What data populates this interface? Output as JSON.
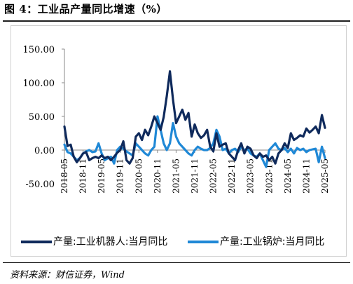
{
  "figure": {
    "title": "图 4：工业品产量同比增速（%）",
    "source": "资料来源：财信证券，Wind"
  },
  "chart_data": {
    "type": "line",
    "yticks": [
      "150.00",
      "100.00",
      "50.00",
      "0.00",
      "-50.00"
    ],
    "ylim": [
      -50,
      150
    ],
    "xlabels": [
      "2018-05",
      "2018-11",
      "2019-05",
      "2019-11",
      "2020-05",
      "2020-11",
      "2021-05",
      "2021-11",
      "2022-05",
      "2022-11",
      "2023-05",
      "2023-11",
      "2024-05",
      "2024-11",
      "2025-05"
    ],
    "legend_position": "bottom",
    "series": [
      {
        "name": "产量:工业机器人:当月同比",
        "color": "#0f2a5c",
        "x": [
          "2018-05",
          "2018-06",
          "2018-07",
          "2018-08",
          "2018-09",
          "2018-10",
          "2018-11",
          "2018-12",
          "2019-01",
          "2019-02",
          "2019-03",
          "2019-04",
          "2019-05",
          "2019-06",
          "2019-07",
          "2019-08",
          "2019-09",
          "2019-10",
          "2019-11",
          "2019-12",
          "2020-01",
          "2020-02",
          "2020-03",
          "2020-04",
          "2020-05",
          "2020-06",
          "2020-07",
          "2020-08",
          "2020-09",
          "2020-10",
          "2020-11",
          "2020-12",
          "2021-01",
          "2021-02",
          "2021-03",
          "2021-04",
          "2021-05",
          "2021-06",
          "2021-07",
          "2021-08",
          "2021-09",
          "2021-10",
          "2021-11",
          "2021-12",
          "2022-01",
          "2022-02",
          "2022-03",
          "2022-04",
          "2022-05",
          "2022-06",
          "2022-07",
          "2022-08",
          "2022-09",
          "2022-10",
          "2022-11",
          "2022-12",
          "2023-01",
          "2023-02",
          "2023-03",
          "2023-04",
          "2023-05",
          "2023-06",
          "2023-07",
          "2023-08",
          "2023-09",
          "2023-10",
          "2023-11",
          "2023-12",
          "2024-01",
          "2024-02",
          "2024-03",
          "2024-04",
          "2024-05",
          "2024-06",
          "2024-07",
          "2024-08",
          "2024-09",
          "2024-10",
          "2024-11",
          "2024-12",
          "2025-01",
          "2025-02",
          "2025-03",
          "2025-04",
          "2025-05"
        ],
        "values": [
          35,
          6,
          8,
          -10,
          -18,
          -12,
          -5,
          -3,
          -15,
          -12,
          -10,
          -12,
          -8,
          -12,
          -10,
          -15,
          -10,
          -4,
          0,
          13,
          -15,
          -20,
          -12,
          20,
          25,
          15,
          30,
          22,
          35,
          50,
          40,
          30,
          49,
          80,
          117,
          75,
          40,
          50,
          60,
          45,
          55,
          20,
          38,
          25,
          18,
          22,
          30,
          5,
          -2,
          25,
          5,
          8,
          10,
          -5,
          -10,
          -15,
          0,
          10,
          -5,
          5,
          2,
          -8,
          -12,
          -5,
          -10,
          -8,
          -15,
          -10,
          -20,
          -5,
          0,
          10,
          3,
          25,
          15,
          18,
          22,
          20,
          32,
          26,
          30,
          35,
          25,
          52,
          33
        ]
      },
      {
        "name": "产量:工业锅炉:当月同比",
        "color": "#1f88d6",
        "x": [
          "2018-05",
          "2018-06",
          "2018-07",
          "2018-08",
          "2018-09",
          "2018-10",
          "2018-11",
          "2018-12",
          "2019-01",
          "2019-02",
          "2019-03",
          "2019-04",
          "2019-05",
          "2019-06",
          "2019-07",
          "2019-08",
          "2019-09",
          "2019-10",
          "2019-11",
          "2019-12",
          "2020-01",
          "2020-02",
          "2020-03",
          "2020-04",
          "2020-05",
          "2020-06",
          "2020-07",
          "2020-08",
          "2020-09",
          "2020-10",
          "2020-11",
          "2020-12",
          "2021-01",
          "2021-02",
          "2021-03",
          "2021-04",
          "2021-05",
          "2021-06",
          "2021-07",
          "2021-08",
          "2021-09",
          "2021-10",
          "2021-11",
          "2021-12",
          "2022-01",
          "2022-02",
          "2022-03",
          "2022-04",
          "2022-05",
          "2022-06",
          "2022-07",
          "2022-08",
          "2022-09",
          "2022-10",
          "2022-11",
          "2022-12",
          "2023-01",
          "2023-02",
          "2023-03",
          "2023-04",
          "2023-05",
          "2023-06",
          "2023-07",
          "2023-08",
          "2023-09",
          "2023-10",
          "2023-11",
          "2023-12",
          "2024-01",
          "2024-02",
          "2024-03",
          "2024-04",
          "2024-05",
          "2024-06",
          "2024-07",
          "2024-08",
          "2024-09",
          "2024-10",
          "2024-11",
          "2024-12",
          "2025-01",
          "2025-02",
          "2025-03",
          "2025-04",
          "2025-05"
        ],
        "values": [
          8,
          -3,
          -5,
          -10,
          -15,
          -12,
          -5,
          -2,
          0,
          -3,
          -2,
          10,
          -5,
          -15,
          -12,
          -10,
          -20,
          0,
          5,
          2,
          -2,
          -5,
          -8,
          10,
          5,
          0,
          -5,
          -8,
          0,
          5,
          50,
          30,
          10,
          0,
          10,
          40,
          20,
          10,
          5,
          0,
          -5,
          -8,
          0,
          5,
          2,
          0,
          0,
          3,
          10,
          30,
          20,
          0,
          2,
          -5,
          0,
          2,
          -3,
          5,
          0,
          2,
          -5,
          -8,
          -10,
          -5,
          -15,
          -25,
          0,
          5,
          10,
          2,
          0,
          3,
          -3,
          2,
          -5,
          3,
          0,
          2,
          -3,
          0,
          1,
          2,
          -18,
          5,
          -12
        ]
      }
    ]
  }
}
